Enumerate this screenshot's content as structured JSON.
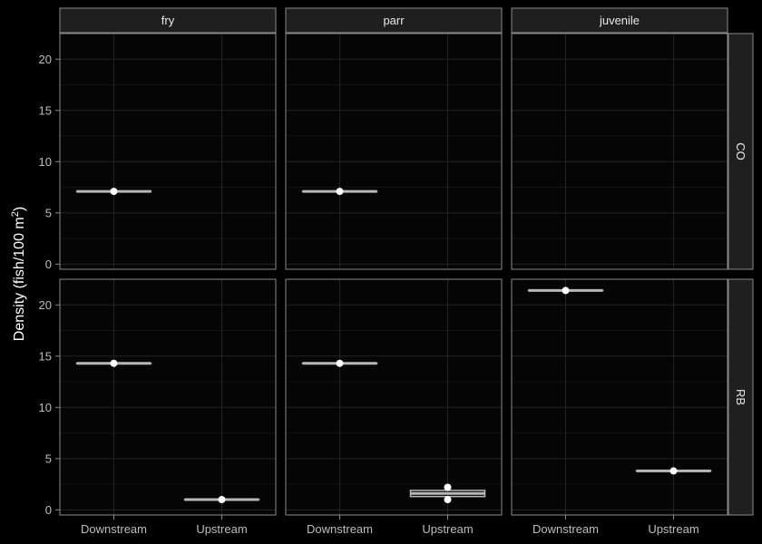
{
  "chart_data": {
    "type": "boxplot",
    "facet_columns": [
      "fry",
      "parr",
      "juvenile"
    ],
    "facet_rows": [
      "CO",
      "RB"
    ],
    "categories": [
      "Downstream",
      "Upstream"
    ],
    "ylabel": "Density (fish/100 m",
    "ylabel_superscript": "2",
    "ylabel_close": ")",
    "ylim": [
      -0.5,
      22.5
    ],
    "yticks": [
      0,
      5,
      10,
      15,
      20
    ],
    "grid": true,
    "theme": "dark",
    "colors": {
      "background": "#000000",
      "panel": "#050505",
      "panel_border": "#8a8a8a",
      "strip_fill": "#1f1f1f",
      "grid_major": "#242424",
      "grid_minor": "#141414",
      "box": "#b8b8b8",
      "point": "#ffffff"
    },
    "panels": [
      {
        "col": "fry",
        "row": "CO",
        "groups": [
          {
            "category": "Downstream",
            "min": 7.1,
            "q1": 7.1,
            "median": 7.1,
            "q3": 7.1,
            "max": 7.1,
            "points": [
              7.1
            ]
          }
        ]
      },
      {
        "col": "parr",
        "row": "CO",
        "groups": [
          {
            "category": "Downstream",
            "min": 7.1,
            "q1": 7.1,
            "median": 7.1,
            "q3": 7.1,
            "max": 7.1,
            "points": [
              7.1
            ]
          }
        ]
      },
      {
        "col": "juvenile",
        "row": "CO",
        "groups": []
      },
      {
        "col": "fry",
        "row": "RB",
        "groups": [
          {
            "category": "Downstream",
            "min": 14.3,
            "q1": 14.3,
            "median": 14.3,
            "q3": 14.3,
            "max": 14.3,
            "points": [
              14.3
            ]
          },
          {
            "category": "Upstream",
            "min": 1.0,
            "q1": 1.0,
            "median": 1.0,
            "q3": 1.0,
            "max": 1.0,
            "points": [
              1.0
            ]
          }
        ]
      },
      {
        "col": "parr",
        "row": "RB",
        "groups": [
          {
            "category": "Downstream",
            "min": 14.3,
            "q1": 14.3,
            "median": 14.3,
            "q3": 14.3,
            "max": 14.3,
            "points": [
              14.3
            ]
          },
          {
            "category": "Upstream",
            "min": 1.0,
            "q1": 1.3,
            "median": 1.6,
            "q3": 1.9,
            "max": 2.2,
            "points": [
              1.0,
              2.2
            ]
          }
        ]
      },
      {
        "col": "juvenile",
        "row": "RB",
        "groups": [
          {
            "category": "Downstream",
            "min": 21.4,
            "q1": 21.4,
            "median": 21.4,
            "q3": 21.4,
            "max": 21.4,
            "points": [
              21.4
            ]
          },
          {
            "category": "Upstream",
            "min": 3.8,
            "q1": 3.8,
            "median": 3.8,
            "q3": 3.8,
            "max": 3.8,
            "points": [
              3.8
            ]
          }
        ]
      }
    ]
  }
}
